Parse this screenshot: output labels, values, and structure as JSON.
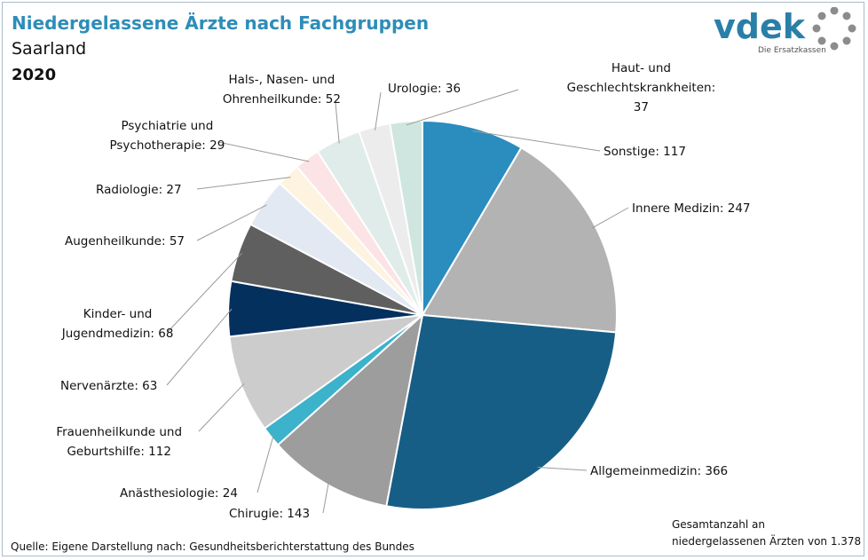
{
  "header": {
    "title": "Niedergelassene Ärzte nach Fachgruppen",
    "region": "Saarland",
    "year": "2020"
  },
  "logo": {
    "text": "vdek",
    "tagline": "Die Ersatzkassen",
    "color": "#2a7fa8",
    "ring_color": "#8c8c8c"
  },
  "footer": {
    "source": "Quelle: Eigene Darstellung nach: Gesundheitsberichterstattung  des Bundes",
    "total_line1": "Gesamtanzahl an",
    "total_line2": "niedergelassenen  Ärzten von 1.378"
  },
  "chart_data": {
    "type": "pie",
    "title": "Niedergelassene Ärzte nach Fachgruppen",
    "start": "12 o'clock, clockwise",
    "slices": [
      {
        "name": "Sonstige",
        "value": 117,
        "color": "#2b8cbe",
        "label_lines": [
          "Sonstige: 117"
        ]
      },
      {
        "name": "Innere Medizin",
        "value": 247,
        "color": "#b3b3b3",
        "label_lines": [
          "Innere Medizin: 247"
        ]
      },
      {
        "name": "Allgemeinmedizin",
        "value": 366,
        "color": "#175e87",
        "label_lines": [
          "Allgemeinmedizin: 366"
        ]
      },
      {
        "name": "Chirugie",
        "value": 143,
        "color": "#9d9d9d",
        "label_lines": [
          "Chirugie: 143"
        ]
      },
      {
        "name": "Anästhesiologie",
        "value": 24,
        "color": "#3cb2cb",
        "label_lines": [
          "Anästhesiologie: 24"
        ]
      },
      {
        "name": "Frauenheilkunde und Geburtshilfe",
        "value": 112,
        "color": "#cccccc",
        "label_lines": [
          "Frauenheilkunde und",
          "Geburtshilfe: 112"
        ]
      },
      {
        "name": "Nervenärzte",
        "value": 63,
        "color": "#04305e",
        "label_lines": [
          "Nervenärzte: 63"
        ]
      },
      {
        "name": "Kinder- und Jugendmedizin",
        "value": 68,
        "color": "#5f5f5f",
        "label_lines": [
          "Kinder- und",
          "Jugendmedizin: 68"
        ]
      },
      {
        "name": "Augenheilkunde",
        "value": 57,
        "color": "#e3e9f3",
        "label_lines": [
          "Augenheilkunde: 57"
        ]
      },
      {
        "name": "Radiologie",
        "value": 27,
        "color": "#fdf3df",
        "label_lines": [
          "Radiologie: 27"
        ]
      },
      {
        "name": "Psychiatrie und Psychotherapie",
        "value": 29,
        "color": "#fce3e5",
        "label_lines": [
          "Psychiatrie und",
          "Psychotherapie: 29"
        ]
      },
      {
        "name": "Hals-, Nasen- und Ohrenheilkunde",
        "value": 52,
        "color": "#e0ece9",
        "label_lines": [
          "Hals-, Nasen- und",
          "Ohrenheilkunde: 52"
        ]
      },
      {
        "name": "Urologie",
        "value": 36,
        "color": "#ececec",
        "label_lines": [
          "Urologie: 36"
        ]
      },
      {
        "name": "Haut- und Geschlechtskrankheiten",
        "value": 37,
        "color": "#cfe6e0",
        "label_lines": [
          "Haut- und",
          "Geschlechtskrankheiten:",
          "37"
        ]
      }
    ],
    "total": 1378
  }
}
